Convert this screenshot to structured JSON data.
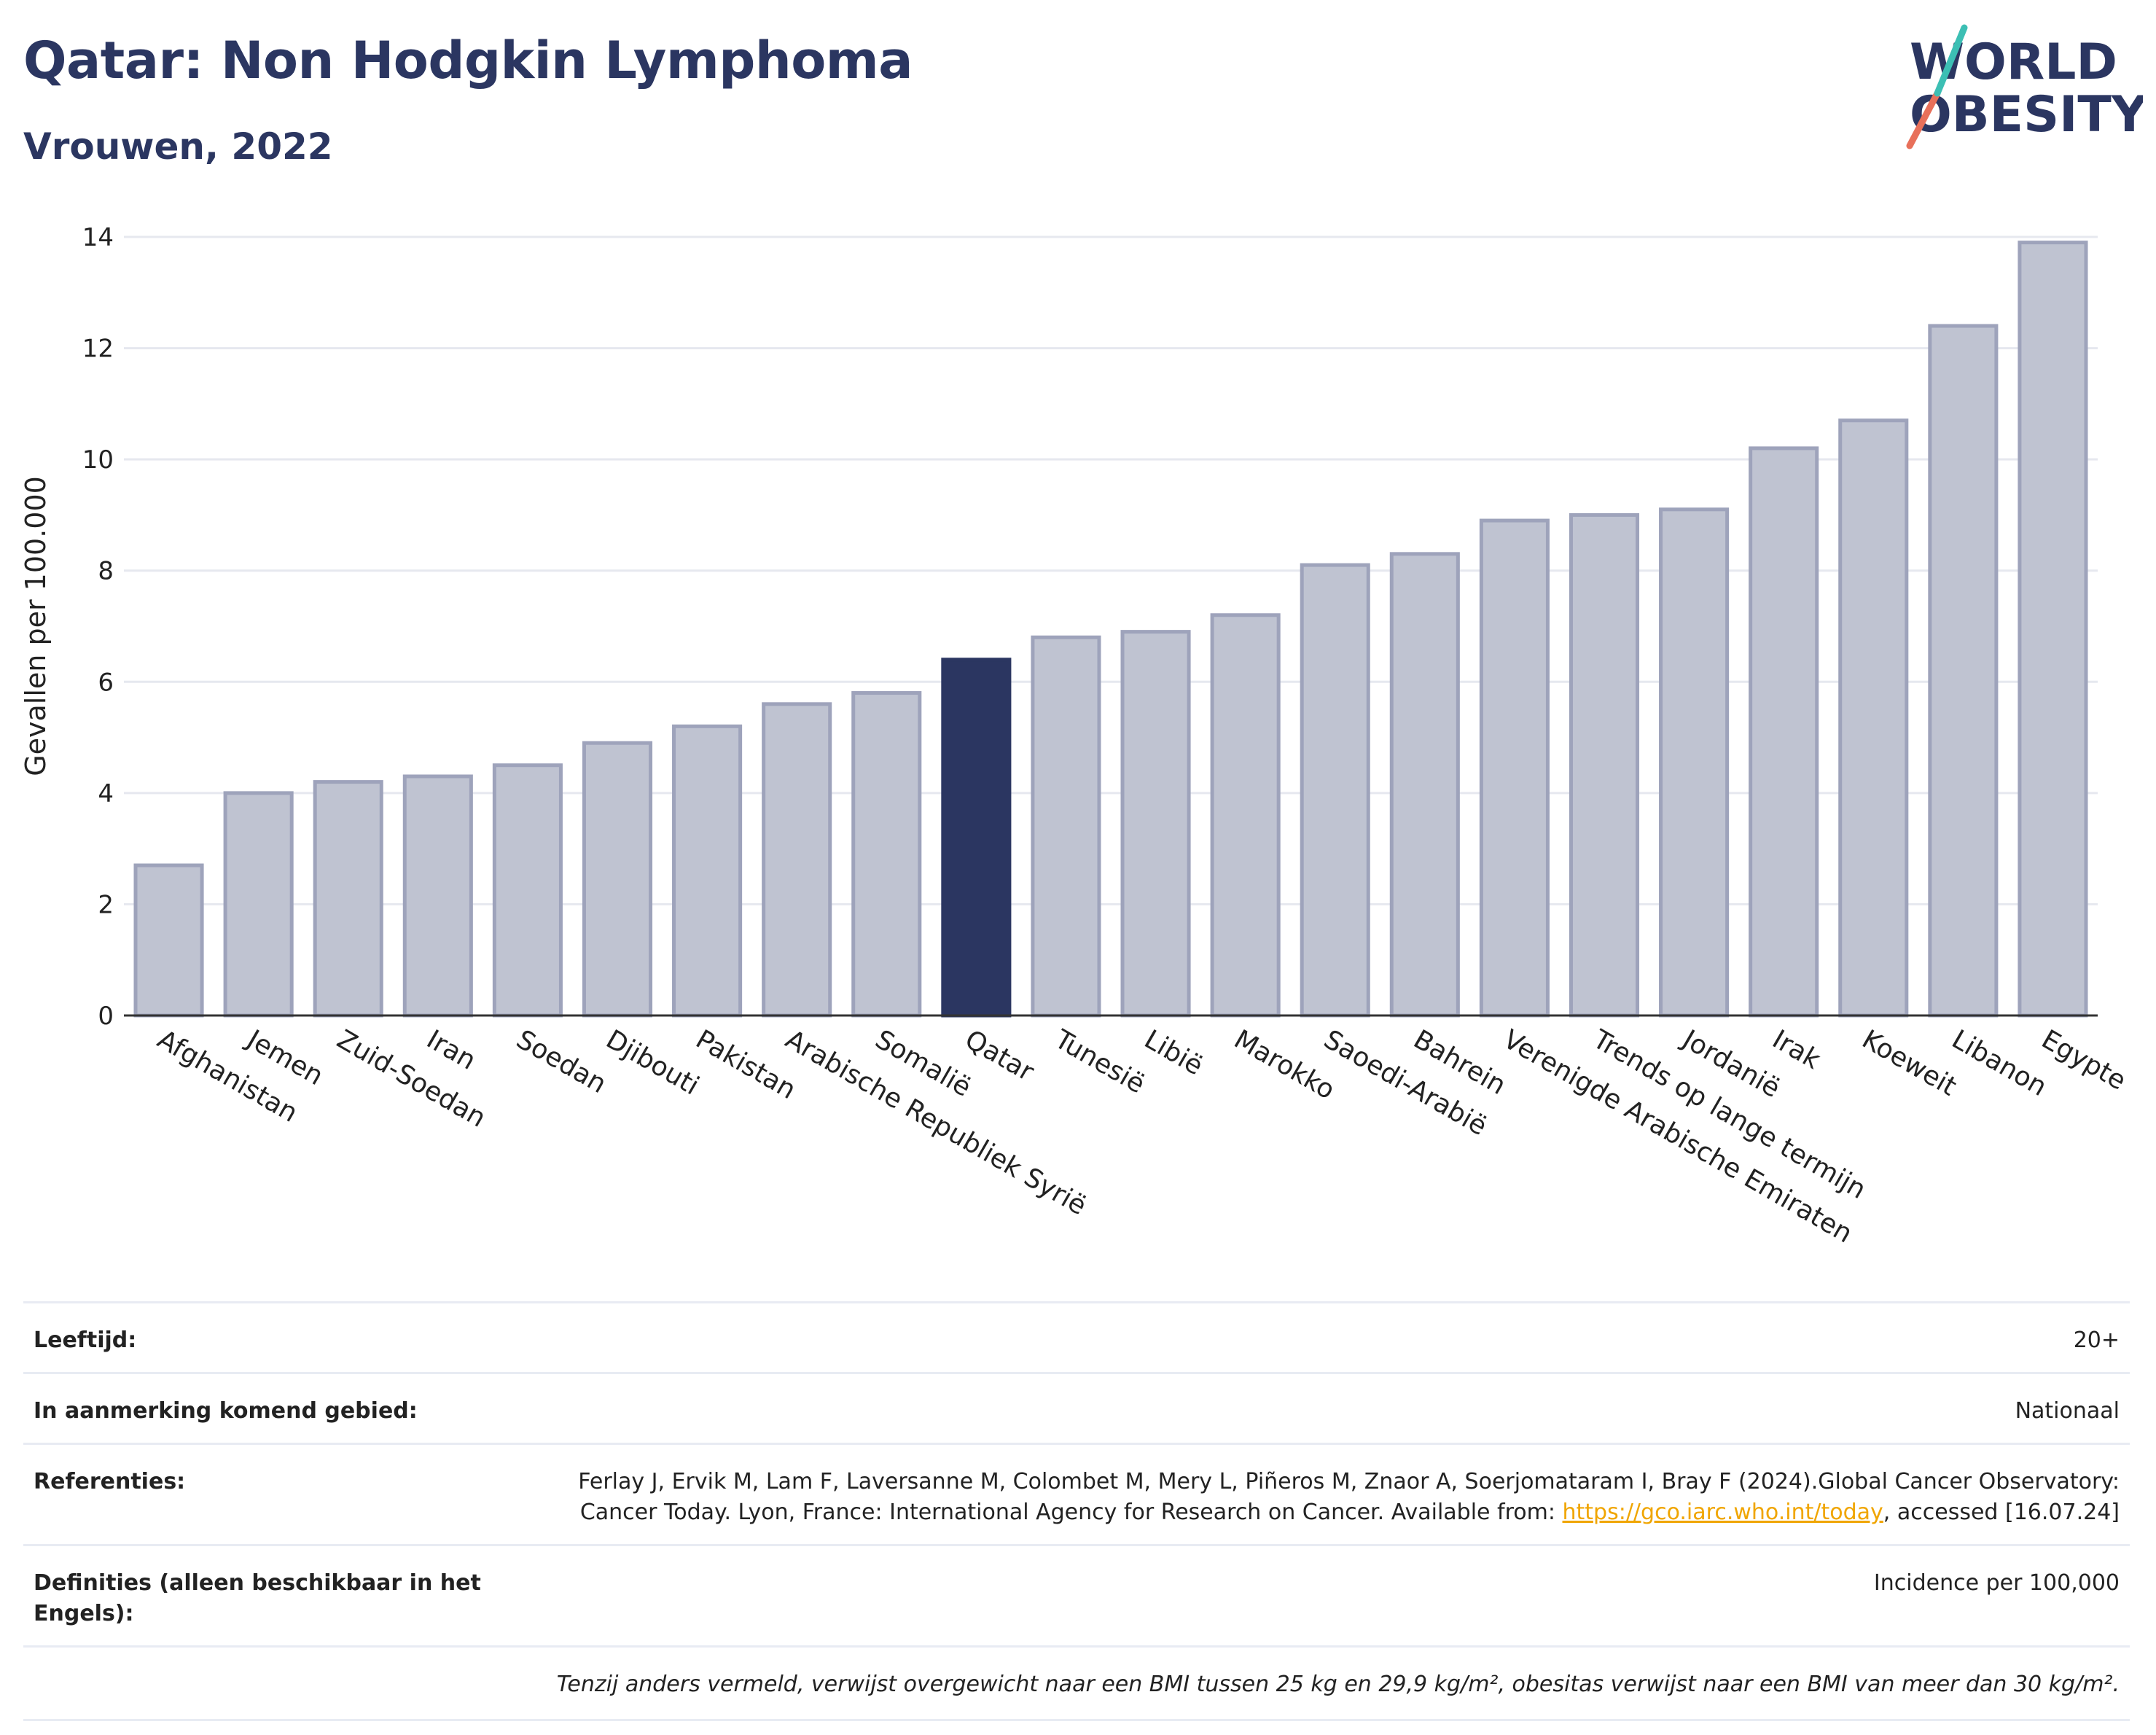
{
  "header": {
    "title": "Qatar: Non Hodgkin Lymphoma",
    "subtitle": "Vrouwen, 2022"
  },
  "logo": {
    "line1": "WORLD",
    "line2": "OBESITY"
  },
  "colors": {
    "bar": "#bfc3d1",
    "bar_border": "#9ea3bb",
    "highlight": "#2b3661",
    "title": "#2b3661",
    "link": "#f0a500"
  },
  "chart_data": {
    "type": "bar",
    "ylabel": "Gevallen per 100.000",
    "ylim": [
      0,
      14
    ],
    "yticks": [
      0,
      2,
      4,
      6,
      8,
      10,
      12,
      14
    ],
    "grid": true,
    "highlight": "Qatar",
    "categories": [
      "Afghanistan",
      "Jemen",
      "Zuid-Soedan",
      "Iran",
      "Soedan",
      "Djibouti",
      "Pakistan",
      "Arabische Republiek Syrië",
      "Somalië",
      "Qatar",
      "Tunesië",
      "Libië",
      "Marokko",
      "Saoedi-Arabië",
      "Bahrein",
      "Verenigde Arabische Emiraten",
      "Trends op lange termijn",
      "Jordanië",
      "Irak",
      "Koeweit",
      "Libanon",
      "Egypte"
    ],
    "values": [
      2.7,
      4.0,
      4.2,
      4.3,
      4.5,
      4.9,
      5.2,
      5.6,
      5.8,
      6.4,
      6.8,
      6.9,
      7.2,
      8.1,
      8.3,
      8.9,
      9.0,
      9.1,
      10.2,
      10.7,
      12.4,
      13.9
    ]
  },
  "meta": {
    "rows": [
      {
        "key": "Leeftijd:",
        "value": "20+"
      },
      {
        "key": "In aanmerking komend gebied:",
        "value": "Nationaal"
      },
      {
        "key": "Referenties:",
        "value_pre": "Ferlay J, Ervik M, Lam F, Laversanne M, Colombet M, Mery L, Piñeros M, Znaor A, Soerjomataram I, Bray F (2024).Global Cancer Observatory: Cancer Today. Lyon, France: International Agency for Research on Cancer. Available from: ",
        "link": "https://gco.iarc.who.int/today",
        "value_post": ", accessed [16.07.24]"
      },
      {
        "key": "Definities (alleen beschikbaar in het Engels):",
        "value": "Incidence per 100,000"
      }
    ],
    "note": "Tenzij anders vermeld, verwijst overgewicht naar een BMI tussen 25 kg en 29,9 kg/m², obesitas verwijst naar een BMI van meer dan 30 kg/m²."
  }
}
